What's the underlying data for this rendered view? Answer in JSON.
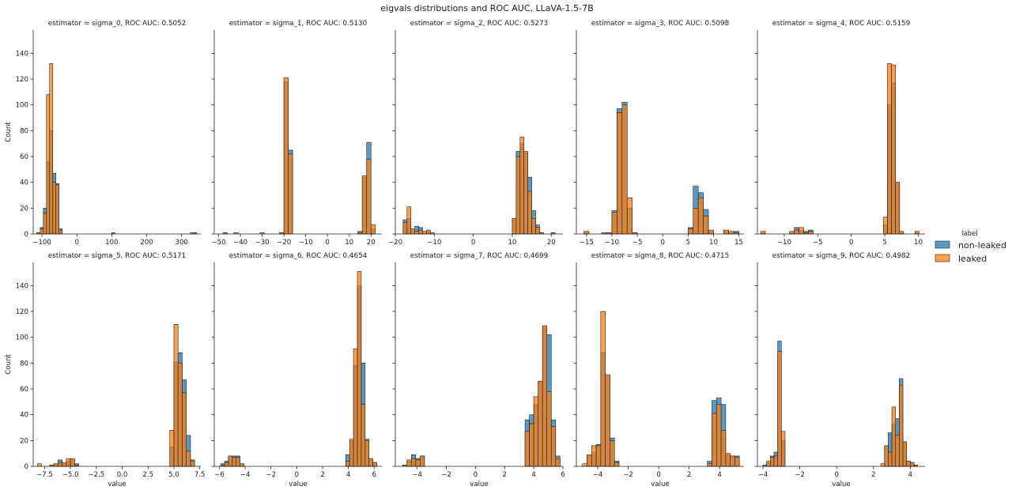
{
  "figure": {
    "suptitle": "eigvals distributions and ROC AUC, LLaVA-1.5-7B",
    "ylabel": "Count",
    "xlabel": "value",
    "ylim": [
      0,
      158
    ],
    "yticks": [
      0,
      20,
      40,
      60,
      80,
      100,
      120,
      140
    ]
  },
  "legend": {
    "title": "label",
    "entries": [
      {
        "label": "non-leaked",
        "color": "#1f77b4"
      },
      {
        "label": "leaked",
        "color": "#ff7f0e"
      }
    ]
  },
  "colors": {
    "non_leaked": "#1f77b4",
    "leaked": "#ff7f0e",
    "axis": "#222222"
  },
  "chart_data": [
    {
      "type": "histogram",
      "title": "estimator = sigma_0, ROC AUC: 0.5052",
      "xlim": [
        -125,
        355
      ],
      "xticks": [
        -100,
        0,
        100,
        200,
        300
      ],
      "bins": [
        {
          "x0": -115,
          "x1": -105,
          "non_leaked": 1,
          "leaked": 0
        },
        {
          "x0": -105,
          "x1": -96,
          "non_leaked": 5,
          "leaked": 4
        },
        {
          "x0": -96,
          "x1": -87,
          "non_leaked": 20,
          "leaked": 16
        },
        {
          "x0": -87,
          "x1": -78,
          "non_leaked": 56,
          "leaked": 108
        },
        {
          "x0": -78,
          "x1": -69,
          "non_leaked": 80,
          "leaked": 132
        },
        {
          "x0": -69,
          "x1": -60,
          "non_leaked": 47,
          "leaked": 40
        },
        {
          "x0": -60,
          "x1": -51,
          "non_leaked": 39,
          "leaked": 38
        },
        {
          "x0": -51,
          "x1": -42,
          "non_leaked": 4,
          "leaked": 3
        },
        {
          "x0": 100,
          "x1": 109,
          "non_leaked": 1,
          "leaked": 0
        },
        {
          "x0": 325,
          "x1": 334,
          "non_leaked": 0,
          "leaked": 1
        },
        {
          "x0": 334,
          "x1": 343,
          "non_leaked": 1,
          "leaked": 1
        }
      ]
    },
    {
      "type": "histogram",
      "title": "estimator = sigma_1, ROC AUC: 0.5130",
      "xlim": [
        -52,
        25
      ],
      "xticks": [
        -50,
        -40,
        -30,
        -20,
        -10,
        0,
        10,
        20
      ],
      "bins": [
        {
          "x0": -48,
          "x1": -46,
          "non_leaked": 1,
          "leaked": 0
        },
        {
          "x0": -43,
          "x1": -41,
          "non_leaked": 0,
          "leaked": 1
        },
        {
          "x0": -31,
          "x1": -29,
          "non_leaked": 0,
          "leaked": 1
        },
        {
          "x0": -22,
          "x1": -20,
          "non_leaked": 1,
          "leaked": 1
        },
        {
          "x0": -20,
          "x1": -18,
          "non_leaked": 118,
          "leaked": 121
        },
        {
          "x0": -18,
          "x1": -16,
          "non_leaked": 65,
          "leaked": 62
        },
        {
          "x0": 14,
          "x1": 16,
          "non_leaked": 2,
          "leaked": 1
        },
        {
          "x0": 16,
          "x1": 18,
          "non_leaked": 44,
          "leaked": 45
        },
        {
          "x0": 18,
          "x1": 20,
          "non_leaked": 71,
          "leaked": 58
        },
        {
          "x0": 20,
          "x1": 22,
          "non_leaked": 4,
          "leaked": 7
        }
      ]
    },
    {
      "type": "histogram",
      "title": "estimator = sigma_2, ROC AUC: 0.5273",
      "xlim": [
        -20,
        23
      ],
      "xticks": [
        -20,
        -10,
        0,
        10,
        20
      ],
      "bins": [
        {
          "x0": -18,
          "x1": -17,
          "non_leaked": 11,
          "leaked": 9
        },
        {
          "x0": -17,
          "x1": -16,
          "non_leaked": 12,
          "leaked": 21
        },
        {
          "x0": -16,
          "x1": -15,
          "non_leaked": 3,
          "leaked": 4
        },
        {
          "x0": -15,
          "x1": -14,
          "non_leaked": 6,
          "leaked": 2
        },
        {
          "x0": -14,
          "x1": -13,
          "non_leaked": 5,
          "leaked": 3
        },
        {
          "x0": -13,
          "x1": -12,
          "non_leaked": 1,
          "leaked": 2
        },
        {
          "x0": -12,
          "x1": -11,
          "non_leaked": 2,
          "leaked": 3
        },
        {
          "x0": -11,
          "x1": -10,
          "non_leaked": 0,
          "leaked": 1
        },
        {
          "x0": 10,
          "x1": 11,
          "non_leaked": 11,
          "leaked": 12
        },
        {
          "x0": 11,
          "x1": 12,
          "non_leaked": 64,
          "leaked": 60
        },
        {
          "x0": 12,
          "x1": 13,
          "non_leaked": 70,
          "leaked": 75
        },
        {
          "x0": 13,
          "x1": 14,
          "non_leaked": 63,
          "leaked": 64
        },
        {
          "x0": 14,
          "x1": 15,
          "non_leaked": 44,
          "leaked": 33
        },
        {
          "x0": 15,
          "x1": 16,
          "non_leaked": 18,
          "leaked": 12
        },
        {
          "x0": 16,
          "x1": 17,
          "non_leaked": 7,
          "leaked": 5
        },
        {
          "x0": 17,
          "x1": 18,
          "non_leaked": 1,
          "leaked": 1
        },
        {
          "x0": 20,
          "x1": 21,
          "non_leaked": 1,
          "leaked": 1
        }
      ]
    },
    {
      "type": "histogram",
      "title": "estimator = sigma_3, ROC AUC: 0.5098",
      "xlim": [
        -17,
        16
      ],
      "xticks": [
        -15,
        -10,
        -5,
        0,
        5,
        10,
        15
      ],
      "bins": [
        {
          "x0": -15.5,
          "x1": -14.5,
          "non_leaked": 1,
          "leaked": 2
        },
        {
          "x0": -12,
          "x1": -11,
          "non_leaked": 1,
          "leaked": 0
        },
        {
          "x0": -11,
          "x1": -10,
          "non_leaked": 1,
          "leaked": 1
        },
        {
          "x0": -10,
          "x1": -9,
          "non_leaked": 18,
          "leaked": 17
        },
        {
          "x0": -9,
          "x1": -8,
          "non_leaked": 97,
          "leaked": 94
        },
        {
          "x0": -8,
          "x1": -7,
          "non_leaked": 102,
          "leaked": 100
        },
        {
          "x0": -7,
          "x1": -6,
          "non_leaked": 20,
          "leaked": 28
        },
        {
          "x0": -6,
          "x1": -5,
          "non_leaked": 1,
          "leaked": 1
        },
        {
          "x0": 5,
          "x1": 6,
          "non_leaked": 5,
          "leaked": 4
        },
        {
          "x0": 6,
          "x1": 7,
          "non_leaked": 37,
          "leaked": 20
        },
        {
          "x0": 7,
          "x1": 8,
          "non_leaked": 32,
          "leaked": 28
        },
        {
          "x0": 8,
          "x1": 9,
          "non_leaked": 19,
          "leaked": 14
        },
        {
          "x0": 9,
          "x1": 10,
          "non_leaked": 2,
          "leaked": 3
        },
        {
          "x0": 12,
          "x1": 13,
          "non_leaked": 2,
          "leaked": 3
        },
        {
          "x0": 13,
          "x1": 14,
          "non_leaked": 1,
          "leaked": 2
        },
        {
          "x0": 14,
          "x1": 15,
          "non_leaked": 2,
          "leaked": 1
        }
      ]
    },
    {
      "type": "histogram",
      "title": "estimator = sigma_4, ROC AUC: 0.5159",
      "xlim": [
        -14,
        11
      ],
      "xticks": [
        -10,
        -5,
        0,
        5,
        10
      ],
      "bins": [
        {
          "x0": -13.5,
          "x1": -12.8,
          "non_leaked": 1,
          "leaked": 2
        },
        {
          "x0": -9.2,
          "x1": -8.5,
          "non_leaked": 1,
          "leaked": 2
        },
        {
          "x0": -8.5,
          "x1": -7.8,
          "non_leaked": 5,
          "leaked": 3
        },
        {
          "x0": -7.8,
          "x1": -7.1,
          "non_leaked": 3,
          "leaked": 5
        },
        {
          "x0": -7.1,
          "x1": -6.4,
          "non_leaked": 2,
          "leaked": 1
        },
        {
          "x0": -6.4,
          "x1": -5.7,
          "non_leaked": 3,
          "leaked": 2
        },
        {
          "x0": 4.8,
          "x1": 5.4,
          "non_leaked": 7,
          "leaked": 13
        },
        {
          "x0": 5.4,
          "x1": 6.0,
          "non_leaked": 100,
          "leaked": 132
        },
        {
          "x0": 6.0,
          "x1": 6.6,
          "non_leaked": 117,
          "leaked": 131
        },
        {
          "x0": 6.6,
          "x1": 7.2,
          "non_leaked": 40,
          "leaked": 40
        },
        {
          "x0": 7.2,
          "x1": 7.8,
          "non_leaked": 1,
          "leaked": 2
        },
        {
          "x0": 9.5,
          "x1": 10.1,
          "non_leaked": 1,
          "leaked": 2
        }
      ]
    },
    {
      "type": "histogram",
      "title": "estimator = sigma_5, ROC AUC: 0.5171",
      "xlim": [
        -8.6,
        7.6
      ],
      "xticks": [
        -7.5,
        -5.0,
        -2.5,
        0.0,
        2.5,
        5.0,
        7.5
      ],
      "bins": [
        {
          "x0": -8.2,
          "x1": -7.8,
          "non_leaked": 0,
          "leaked": 2
        },
        {
          "x0": -7.0,
          "x1": -6.6,
          "non_leaked": 1,
          "leaked": 1
        },
        {
          "x0": -6.6,
          "x1": -6.2,
          "non_leaked": 2,
          "leaked": 2
        },
        {
          "x0": -6.2,
          "x1": -5.8,
          "non_leaked": 5,
          "leaked": 3
        },
        {
          "x0": -5.8,
          "x1": -5.4,
          "non_leaked": 2,
          "leaked": 3
        },
        {
          "x0": -5.4,
          "x1": -5.0,
          "non_leaked": 4,
          "leaked": 6
        },
        {
          "x0": -5.0,
          "x1": -4.6,
          "non_leaked": 5,
          "leaked": 6
        },
        {
          "x0": -4.6,
          "x1": -4.2,
          "non_leaked": 2,
          "leaked": 1
        },
        {
          "x0": 4.6,
          "x1": 5.0,
          "non_leaked": 15,
          "leaked": 28
        },
        {
          "x0": 5.0,
          "x1": 5.4,
          "non_leaked": 81,
          "leaked": 110
        },
        {
          "x0": 5.4,
          "x1": 5.8,
          "non_leaked": 88,
          "leaked": 80
        },
        {
          "x0": 5.8,
          "x1": 6.2,
          "non_leaked": 67,
          "leaked": 57
        },
        {
          "x0": 6.2,
          "x1": 6.6,
          "non_leaked": 24,
          "leaked": 12
        },
        {
          "x0": 6.6,
          "x1": 7.0,
          "non_leaked": 5,
          "leaked": 4
        }
      ]
    },
    {
      "type": "histogram",
      "title": "estimator = sigma_6, ROC AUC: 0.4654",
      "xlim": [
        -6.4,
        6.6
      ],
      "xticks": [
        -6,
        -4,
        -2,
        0,
        2,
        4,
        6
      ],
      "bins": [
        {
          "x0": -5.9,
          "x1": -5.6,
          "non_leaked": 2,
          "leaked": 1
        },
        {
          "x0": -5.6,
          "x1": -5.3,
          "non_leaked": 4,
          "leaked": 3
        },
        {
          "x0": -5.3,
          "x1": -5.0,
          "non_leaked": 8,
          "leaked": 8
        },
        {
          "x0": -5.0,
          "x1": -4.7,
          "non_leaked": 8,
          "leaked": 7
        },
        {
          "x0": -4.7,
          "x1": -4.4,
          "non_leaked": 8,
          "leaked": 7
        },
        {
          "x0": -4.4,
          "x1": -4.1,
          "non_leaked": 2,
          "leaked": 2
        },
        {
          "x0": 3.8,
          "x1": 4.1,
          "non_leaked": 9,
          "leaked": 4
        },
        {
          "x0": 4.1,
          "x1": 4.4,
          "non_leaked": 20,
          "leaked": 21
        },
        {
          "x0": 4.4,
          "x1": 4.7,
          "non_leaked": 78,
          "leaked": 91
        },
        {
          "x0": 4.7,
          "x1": 5.0,
          "non_leaked": 140,
          "leaked": 151
        },
        {
          "x0": 5.0,
          "x1": 5.3,
          "non_leaked": 80,
          "leaked": 48
        },
        {
          "x0": 5.3,
          "x1": 5.6,
          "non_leaked": 21,
          "leaked": 20
        },
        {
          "x0": 5.6,
          "x1": 5.9,
          "non_leaked": 6,
          "leaked": 6
        },
        {
          "x0": 5.9,
          "x1": 6.2,
          "non_leaked": 3,
          "leaked": 3
        }
      ]
    },
    {
      "type": "histogram",
      "title": "estimator = sigma_7, ROC AUC: 0.4699",
      "xlim": [
        -5.5,
        6.0
      ],
      "xticks": [
        -4,
        -2,
        0,
        2,
        4,
        6
      ],
      "bins": [
        {
          "x0": -5.0,
          "x1": -4.7,
          "non_leaked": 1,
          "leaked": 1
        },
        {
          "x0": -4.7,
          "x1": -4.4,
          "non_leaked": 4,
          "leaked": 5
        },
        {
          "x0": -4.4,
          "x1": -4.1,
          "non_leaked": 9,
          "leaked": 6
        },
        {
          "x0": -4.1,
          "x1": -3.8,
          "non_leaked": 6,
          "leaked": 5
        },
        {
          "x0": -3.8,
          "x1": -3.5,
          "non_leaked": 8,
          "leaked": 8
        },
        {
          "x0": 3.4,
          "x1": 3.7,
          "non_leaked": 36,
          "leaked": 27
        },
        {
          "x0": 3.7,
          "x1": 4.0,
          "non_leaked": 40,
          "leaked": 33
        },
        {
          "x0": 4.0,
          "x1": 4.3,
          "non_leaked": 48,
          "leaked": 54
        },
        {
          "x0": 4.3,
          "x1": 4.6,
          "non_leaked": 66,
          "leaked": 66
        },
        {
          "x0": 4.6,
          "x1": 4.9,
          "non_leaked": 108,
          "leaked": 109
        },
        {
          "x0": 4.9,
          "x1": 5.2,
          "non_leaked": 102,
          "leaked": 58
        },
        {
          "x0": 5.2,
          "x1": 5.5,
          "non_leaked": 36,
          "leaked": 31
        },
        {
          "x0": 5.5,
          "x1": 5.8,
          "non_leaked": 8,
          "leaked": 6
        }
      ]
    },
    {
      "type": "histogram",
      "title": "estimator = sigma_8, ROC AUC: 0.4715",
      "xlim": [
        -5.4,
        5.6
      ],
      "xticks": [
        -4,
        -2,
        0,
        2,
        4
      ],
      "bins": [
        {
          "x0": -5.0,
          "x1": -4.7,
          "non_leaked": 0,
          "leaked": 2
        },
        {
          "x0": -4.7,
          "x1": -4.4,
          "non_leaked": 8,
          "leaked": 9
        },
        {
          "x0": -4.4,
          "x1": -4.1,
          "non_leaked": 11,
          "leaked": 16
        },
        {
          "x0": -4.1,
          "x1": -3.8,
          "non_leaked": 17,
          "leaked": 16
        },
        {
          "x0": -3.8,
          "x1": -3.5,
          "non_leaked": 88,
          "leaked": 120
        },
        {
          "x0": -3.5,
          "x1": -3.2,
          "non_leaked": 70,
          "leaked": 71
        },
        {
          "x0": -3.2,
          "x1": -2.9,
          "non_leaked": 22,
          "leaked": 20
        },
        {
          "x0": -2.9,
          "x1": -2.6,
          "non_leaked": 4,
          "leaked": 3
        },
        {
          "x0": 3.2,
          "x1": 3.5,
          "non_leaked": 4,
          "leaked": 2
        },
        {
          "x0": 3.5,
          "x1": 3.8,
          "non_leaked": 51,
          "leaked": 41
        },
        {
          "x0": 3.8,
          "x1": 4.1,
          "non_leaked": 53,
          "leaked": 48
        },
        {
          "x0": 4.1,
          "x1": 4.4,
          "non_leaked": 48,
          "leaked": 28
        },
        {
          "x0": 4.4,
          "x1": 4.7,
          "non_leaked": 9,
          "leaked": 10
        },
        {
          "x0": 4.7,
          "x1": 5.0,
          "non_leaked": 8,
          "leaked": 8
        },
        {
          "x0": 5.0,
          "x1": 5.3,
          "non_leaked": 8,
          "leaked": 7
        }
      ]
    },
    {
      "type": "histogram",
      "title": "estimator = sigma_9, ROC AUC: 0.4982",
      "xlim": [
        -4.3,
        4.8
      ],
      "xticks": [
        -4,
        -2,
        0,
        2,
        4
      ],
      "bins": [
        {
          "x0": -4.0,
          "x1": -3.8,
          "non_leaked": 1,
          "leaked": 0
        },
        {
          "x0": -3.8,
          "x1": -3.6,
          "non_leaked": 3,
          "leaked": 4
        },
        {
          "x0": -3.6,
          "x1": -3.4,
          "non_leaked": 8,
          "leaked": 7
        },
        {
          "x0": -3.4,
          "x1": -3.2,
          "non_leaked": 11,
          "leaked": 8
        },
        {
          "x0": -3.2,
          "x1": -3.0,
          "non_leaked": 97,
          "leaked": 89
        },
        {
          "x0": -3.0,
          "x1": -2.8,
          "non_leaked": 20,
          "leaked": 27
        },
        {
          "x0": 2.4,
          "x1": 2.6,
          "non_leaked": 0,
          "leaked": 2
        },
        {
          "x0": 2.6,
          "x1": 2.8,
          "non_leaked": 16,
          "leaked": 16
        },
        {
          "x0": 2.8,
          "x1": 3.0,
          "non_leaked": 26,
          "leaked": 11
        },
        {
          "x0": 3.0,
          "x1": 3.2,
          "non_leaked": 33,
          "leaked": 46
        },
        {
          "x0": 3.2,
          "x1": 3.4,
          "non_leaked": 37,
          "leaked": 24
        },
        {
          "x0": 3.4,
          "x1": 3.6,
          "non_leaked": 68,
          "leaked": 63
        },
        {
          "x0": 3.6,
          "x1": 3.8,
          "non_leaked": 19,
          "leaked": 19
        },
        {
          "x0": 3.8,
          "x1": 4.0,
          "non_leaked": 4,
          "leaked": 4
        },
        {
          "x0": 4.0,
          "x1": 4.2,
          "non_leaked": 3,
          "leaked": 3
        },
        {
          "x0": 4.2,
          "x1": 4.4,
          "non_leaked": 1,
          "leaked": 1
        }
      ]
    }
  ]
}
